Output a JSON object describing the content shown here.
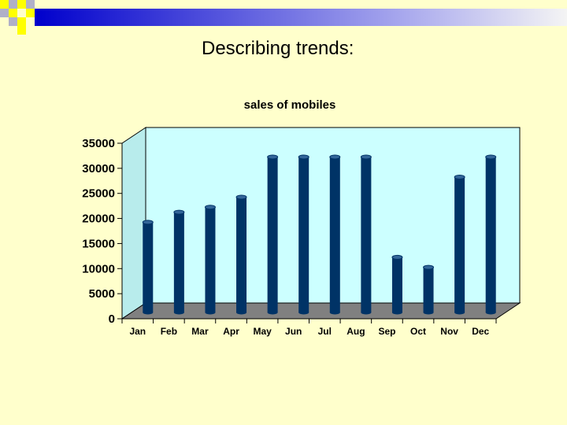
{
  "slide": {
    "title": "Describing trends:"
  },
  "colors": {
    "background": "#ffffcc",
    "plot_wall": "#ccffff",
    "floor": "#808080",
    "bar": "#003366",
    "bar_top": "#336699"
  },
  "chart_data": {
    "type": "bar",
    "title": "sales of mobiles",
    "categories": [
      "Jan",
      "Feb",
      "Mar",
      "Apr",
      "May",
      "Jun",
      "Jul",
      "Aug",
      "Sep",
      "Oct",
      "Nov",
      "Dec"
    ],
    "values": [
      18000,
      20000,
      21000,
      23000,
      31000,
      31000,
      31000,
      31000,
      11000,
      9000,
      27000,
      31000
    ],
    "yticks": [
      "0",
      "5000",
      "10000",
      "15000",
      "20000",
      "25000",
      "30000",
      "35000"
    ],
    "ylim": [
      0,
      35000
    ],
    "style": "3d-cylinder",
    "grid": false,
    "legend": "none"
  }
}
